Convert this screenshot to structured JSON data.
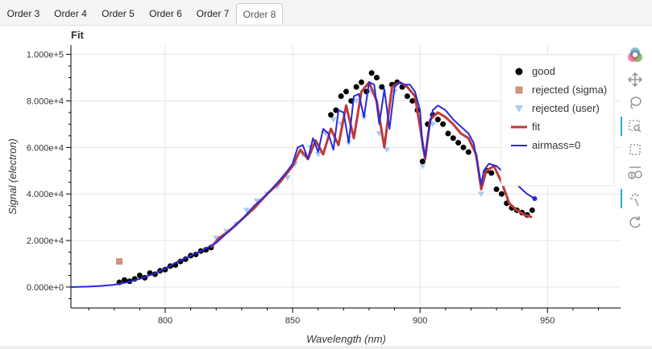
{
  "tabs": [
    {
      "label": "Order 3"
    },
    {
      "label": "Order 4"
    },
    {
      "label": "Order 5"
    },
    {
      "label": "Order 6"
    },
    {
      "label": "Order 7"
    },
    {
      "label": "Order 8"
    }
  ],
  "active_tab": "Order 8",
  "toolbar": [
    {
      "icon": "bokeh-logo-icon"
    },
    {
      "icon": "pan-icon"
    },
    {
      "icon": "lasso-select-icon"
    },
    {
      "icon": "box-zoom-icon"
    },
    {
      "icon": "box-select-icon"
    },
    {
      "icon": "point-draw-icon"
    },
    {
      "icon": "tap-icon"
    },
    {
      "icon": "reset-icon"
    }
  ],
  "chart_data": {
    "type": "scatter",
    "title": "Fit",
    "xlabel": "Wavelength (nm)",
    "ylabel": "Signal (electron)",
    "xlim": [
      763,
      979
    ],
    "ylim": [
      -9000,
      104000
    ],
    "grid": true,
    "legend_position": "top-right",
    "x_ticks": [
      800,
      850,
      900,
      950
    ],
    "x_tick_labels": [
      "800",
      "850",
      "900",
      "950"
    ],
    "y_ticks": [
      0,
      20000,
      40000,
      60000,
      80000,
      100000
    ],
    "y_tick_labels": [
      "0.000e+0",
      "2.000e+4",
      "4.000e+4",
      "6.000e+4",
      "8.000e+4",
      "1.000e+5"
    ],
    "colors": {
      "good": "#000000",
      "rejected_sigma": "#d3907a",
      "rejected_user": "#a6cdf3",
      "fit": "#c0393b",
      "airmass": "#2a2ad8"
    },
    "series": [
      {
        "name": "good",
        "kind": "points",
        "marker": "circle",
        "x": [
          782,
          784,
          786,
          788,
          790,
          792,
          794,
          796,
          798,
          800,
          802,
          804,
          806,
          808,
          810,
          812,
          814,
          816,
          818,
          865,
          867,
          869,
          871,
          873,
          875,
          877,
          879,
          881,
          883,
          885,
          889,
          891,
          893,
          895,
          897,
          899,
          901,
          903,
          905,
          907,
          909,
          911,
          913,
          915,
          917,
          919,
          926,
          928,
          930,
          932,
          934,
          936,
          938,
          940,
          942,
          944
        ],
        "y": [
          2000,
          3000,
          2500,
          3500,
          5000,
          4000,
          6000,
          5500,
          7000,
          7500,
          9000,
          9500,
          11000,
          12000,
          13500,
          14000,
          15500,
          16000,
          17000,
          74000,
          76000,
          82000,
          84000,
          80000,
          86000,
          88000,
          84000,
          92000,
          90000,
          86000,
          87000,
          88000,
          86000,
          82000,
          80000,
          76000,
          54000,
          70000,
          74000,
          72000,
          70000,
          66000,
          64000,
          62000,
          60000,
          58000,
          50000,
          49000,
          42000,
          40000,
          36000,
          34000,
          33000,
          32000,
          31000,
          33000
        ]
      },
      {
        "name": "rejected (sigma)",
        "kind": "points",
        "marker": "square",
        "x": [
          782
        ],
        "y": [
          11000
        ]
      },
      {
        "name": "rejected (user)",
        "kind": "points",
        "marker": "triangle-down",
        "x": [
          820,
          824,
          828,
          832,
          836,
          840,
          844,
          848,
          851,
          854,
          857,
          860,
          863,
          866,
          869,
          872,
          875,
          878,
          881,
          884,
          887,
          890,
          901,
          905,
          924
        ],
        "y": [
          21000,
          24000,
          27000,
          33000,
          37000,
          40000,
          43000,
          47000,
          53000,
          57000,
          60000,
          57000,
          66000,
          72000,
          70000,
          62000,
          80000,
          73000,
          84000,
          66000,
          59000,
          84000,
          52000,
          70000,
          40000
        ]
      },
      {
        "name": "fit",
        "kind": "line",
        "x": [
          818,
          821,
          825,
          830,
          835,
          840,
          845,
          850,
          853,
          856,
          859,
          862,
          865,
          868,
          871,
          874,
          877,
          880,
          883,
          886,
          889,
          892,
          895,
          898,
          901,
          902,
          904,
          907,
          910,
          913,
          916,
          919,
          922,
          924,
          926,
          929,
          932,
          935,
          938,
          941,
          944
        ],
        "y": [
          17000,
          21000,
          24000,
          29000,
          34000,
          40000,
          45000,
          52000,
          59000,
          55000,
          63000,
          57000,
          68000,
          61000,
          78000,
          64000,
          84000,
          88000,
          80000,
          60000,
          86000,
          88000,
          86000,
          82000,
          62000,
          55000,
          72000,
          75000,
          73000,
          70000,
          66000,
          64000,
          57000,
          42000,
          50000,
          52000,
          45000,
          36000,
          33000,
          31000,
          30000
        ]
      },
      {
        "name": "airmass=0",
        "kind": "line",
        "x": [
          763,
          770,
          775,
          780,
          785,
          790,
          795,
          800,
          805,
          810,
          815,
          820,
          825,
          830,
          835,
          840,
          845,
          848,
          850,
          852,
          854,
          856,
          858,
          860,
          862,
          864,
          866,
          868,
          870,
          872,
          874,
          876,
          878,
          880,
          882,
          884,
          886,
          888,
          890,
          892,
          894,
          896,
          898,
          900,
          901,
          902,
          903,
          905,
          907,
          910,
          913,
          916,
          919,
          921,
          923,
          924,
          925,
          927,
          930,
          933,
          936,
          939,
          942,
          945
        ],
        "y": [
          0,
          200,
          500,
          1000,
          2000,
          3500,
          5500,
          8000,
          11000,
          13500,
          16000,
          19000,
          24000,
          29000,
          35000,
          40000,
          46000,
          50000,
          53000,
          60000,
          61000,
          55000,
          64000,
          58000,
          68000,
          66000,
          59000,
          76000,
          75000,
          62000,
          82000,
          83000,
          73000,
          88000,
          87000,
          70000,
          85000,
          68000,
          86000,
          88000,
          87000,
          87000,
          84000,
          76000,
          60000,
          56000,
          65000,
          76000,
          78000,
          76000,
          72000,
          69000,
          66000,
          62000,
          50000,
          44000,
          50000,
          53000,
          52000,
          49000,
          46000,
          43000,
          40000,
          38000
        ]
      }
    ]
  }
}
